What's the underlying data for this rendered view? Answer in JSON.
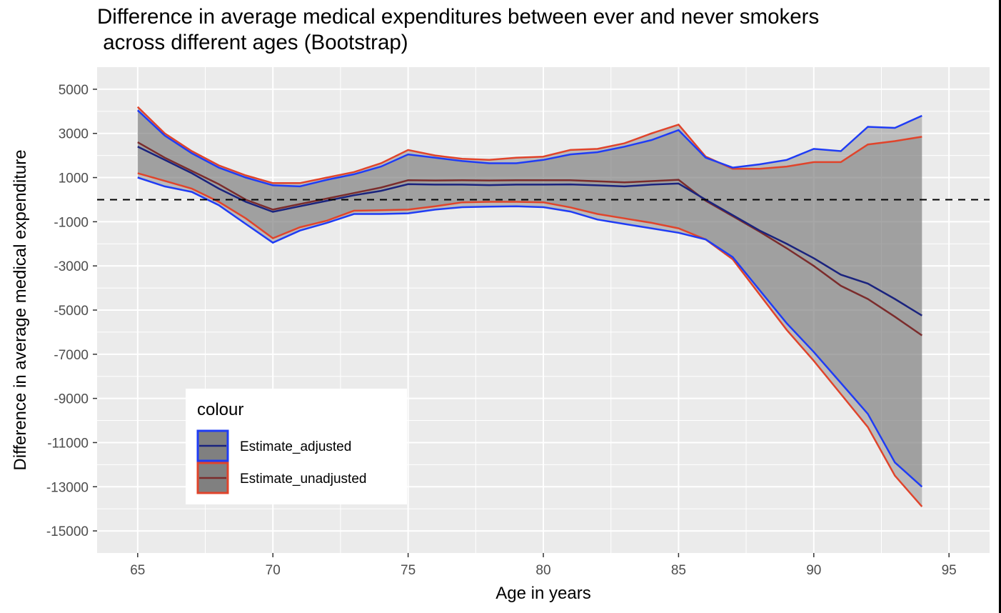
{
  "title_line1": "Difference in average medical expenditures between ever and never smokers",
  "title_line2": " across different ages (Bootstrap)",
  "chart_data": {
    "type": "line",
    "title": "Difference in average medical expenditures between ever and never smokers\n across different ages (Bootstrap)",
    "xlabel": "Age in years",
    "ylabel": "Difference in average medical expenditure",
    "xlim": [
      63.5,
      96.5
    ],
    "ylim": [
      -16000,
      6000
    ],
    "x_ticks": [
      65,
      70,
      75,
      80,
      85,
      90,
      95
    ],
    "y_ticks": [
      5000,
      3000,
      1000,
      -1000,
      -3000,
      -5000,
      -7000,
      -9000,
      -11000,
      -13000,
      -15000
    ],
    "grid": true,
    "reference_line": {
      "y": 0,
      "style": "dashed",
      "color": "#000000"
    },
    "legend": {
      "title": "colour",
      "position": "bottom-left inside"
    },
    "x": [
      65,
      66,
      67,
      68,
      69,
      70,
      71,
      72,
      73,
      74,
      75,
      76,
      77,
      78,
      79,
      80,
      81,
      82,
      83,
      84,
      85,
      86,
      87,
      88,
      89,
      90,
      91,
      92,
      93,
      94
    ],
    "series": [
      {
        "name": "Estimate_adjusted",
        "line_color": "#1a237e",
        "band_color": "#1f3cf5",
        "fill_color": "#808080",
        "estimate": [
          2400,
          1800,
          1200,
          500,
          -100,
          -550,
          -300,
          -50,
          200,
          400,
          700,
          680,
          680,
          660,
          680,
          680,
          690,
          650,
          600,
          680,
          730,
          0,
          -700,
          -1400,
          -2000,
          -2650,
          -3400,
          -3800,
          -4500,
          -5250
        ],
        "upper": [
          4050,
          2900,
          2100,
          1450,
          1000,
          650,
          600,
          900,
          1150,
          1500,
          2050,
          1900,
          1750,
          1650,
          1650,
          1800,
          2050,
          2150,
          2400,
          2700,
          3150,
          1900,
          1450,
          1600,
          1800,
          2300,
          2200,
          3300,
          3250,
          3800
        ],
        "lower": [
          1000,
          600,
          350,
          -250,
          -1100,
          -1950,
          -1400,
          -1050,
          -650,
          -650,
          -620,
          -450,
          -340,
          -320,
          -300,
          -340,
          -540,
          -900,
          -1100,
          -1300,
          -1500,
          -1800,
          -2600,
          -4100,
          -5600,
          -6900,
          -8300,
          -9700,
          -11900,
          -13000
        ]
      },
      {
        "name": "Estimate_unadjusted",
        "line_color": "#7b2c2c",
        "band_color": "#e0442b",
        "fill_color": "#808080",
        "estimate": [
          2600,
          1900,
          1300,
          700,
          0,
          -450,
          -200,
          50,
          300,
          550,
          880,
          870,
          880,
          870,
          880,
          880,
          880,
          830,
          780,
          840,
          900,
          -50,
          -750,
          -1450,
          -2200,
          -3000,
          -3900,
          -4500,
          -5300,
          -6150
        ],
        "upper": [
          4200,
          3000,
          2200,
          1550,
          1100,
          750,
          750,
          1000,
          1250,
          1650,
          2250,
          2000,
          1850,
          1800,
          1900,
          1950,
          2250,
          2300,
          2550,
          3000,
          3400,
          1950,
          1400,
          1400,
          1500,
          1700,
          1700,
          2500,
          2650,
          2850
        ],
        "lower": [
          1200,
          850,
          500,
          -100,
          -850,
          -1750,
          -1250,
          -950,
          -500,
          -480,
          -450,
          -300,
          -120,
          -100,
          -100,
          -120,
          -350,
          -650,
          -850,
          -1050,
          -1300,
          -1800,
          -2700,
          -4300,
          -5900,
          -7300,
          -8800,
          -10300,
          -12500,
          -13900
        ]
      }
    ]
  }
}
